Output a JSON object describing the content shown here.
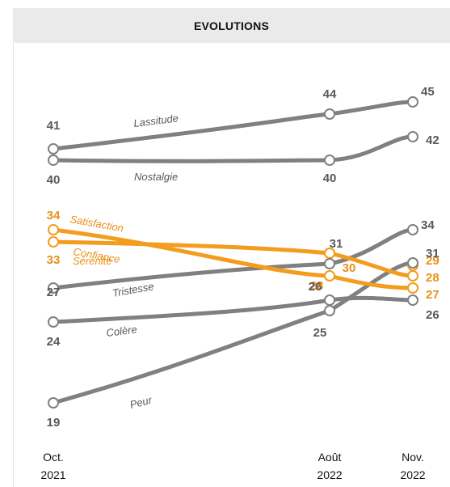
{
  "chart_data": {
    "type": "line",
    "title": "EVOLUTIONS",
    "xlabel": "",
    "ylabel": "",
    "x_ticks": [
      {
        "line1": "Oct.",
        "line2": "2021"
      },
      {
        "line1": "Août",
        "line2": "2022"
      },
      {
        "line1": "Nov.",
        "line2": "2022"
      }
    ],
    "grid": false,
    "legend": "none",
    "series": [
      {
        "name": "Lassitude",
        "values": [
          41,
          44,
          45
        ],
        "color": "#808080",
        "label_color": "#595959"
      },
      {
        "name": "Nostalgie",
        "values": [
          40,
          40,
          42
        ],
        "color": "#808080",
        "label_color": "#595959"
      },
      {
        "name": "Satisfaction",
        "values": [
          34,
          28,
          27
        ],
        "color": "#f39c1d",
        "label_color": "#e8901a"
      },
      {
        "name": "Confiance",
        "values": [
          33,
          30,
          28
        ],
        "color": "#f39c1d",
        "label_color": "#e8901a"
      },
      {
        "name": "Sérénité",
        "values": [
          null,
          30,
          29
        ],
        "color": "#f39c1d",
        "label_color": "#e8901a"
      },
      {
        "name": "Tristesse",
        "values": [
          27,
          31,
          34
        ],
        "color": "#808080",
        "label_color": "#595959"
      },
      {
        "name": "Colère",
        "values": [
          24,
          26,
          26
        ],
        "color": "#808080",
        "label_color": "#595959"
      },
      {
        "name": "Peur",
        "values": [
          19,
          25,
          31
        ],
        "color": "#808080",
        "label_color": "#595959"
      }
    ]
  }
}
